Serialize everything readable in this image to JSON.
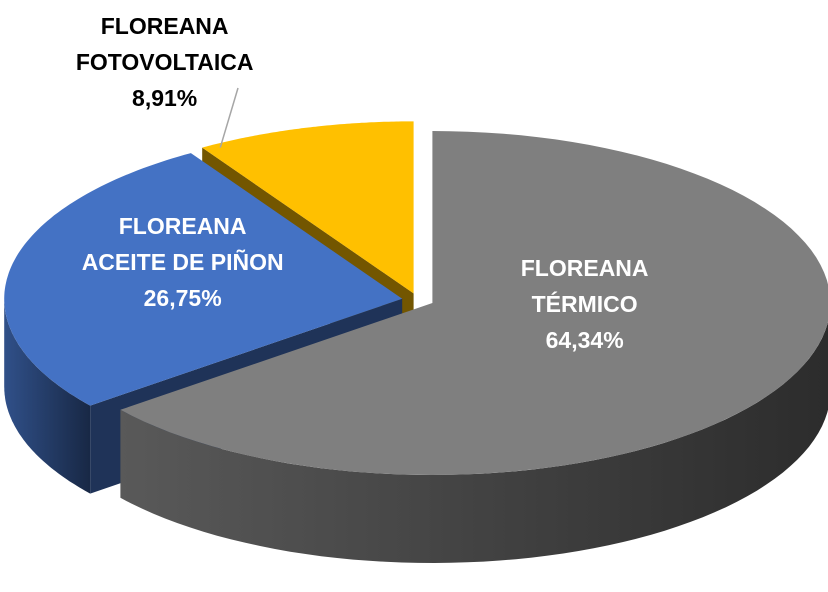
{
  "chart_data": {
    "type": "pie",
    "categories": [
      "FLOREANA TÉRMICO",
      "FLOREANA ACEITE DE PIÑON",
      "FLOREANA FOTOVOLTAICA"
    ],
    "values": [
      64.34,
      26.75,
      8.91
    ],
    "value_labels": [
      "64,34%",
      "26,75%",
      "8,91%"
    ],
    "colors": [
      "#7f7f7f",
      "#4472c4",
      "#ffc000"
    ]
  }
}
